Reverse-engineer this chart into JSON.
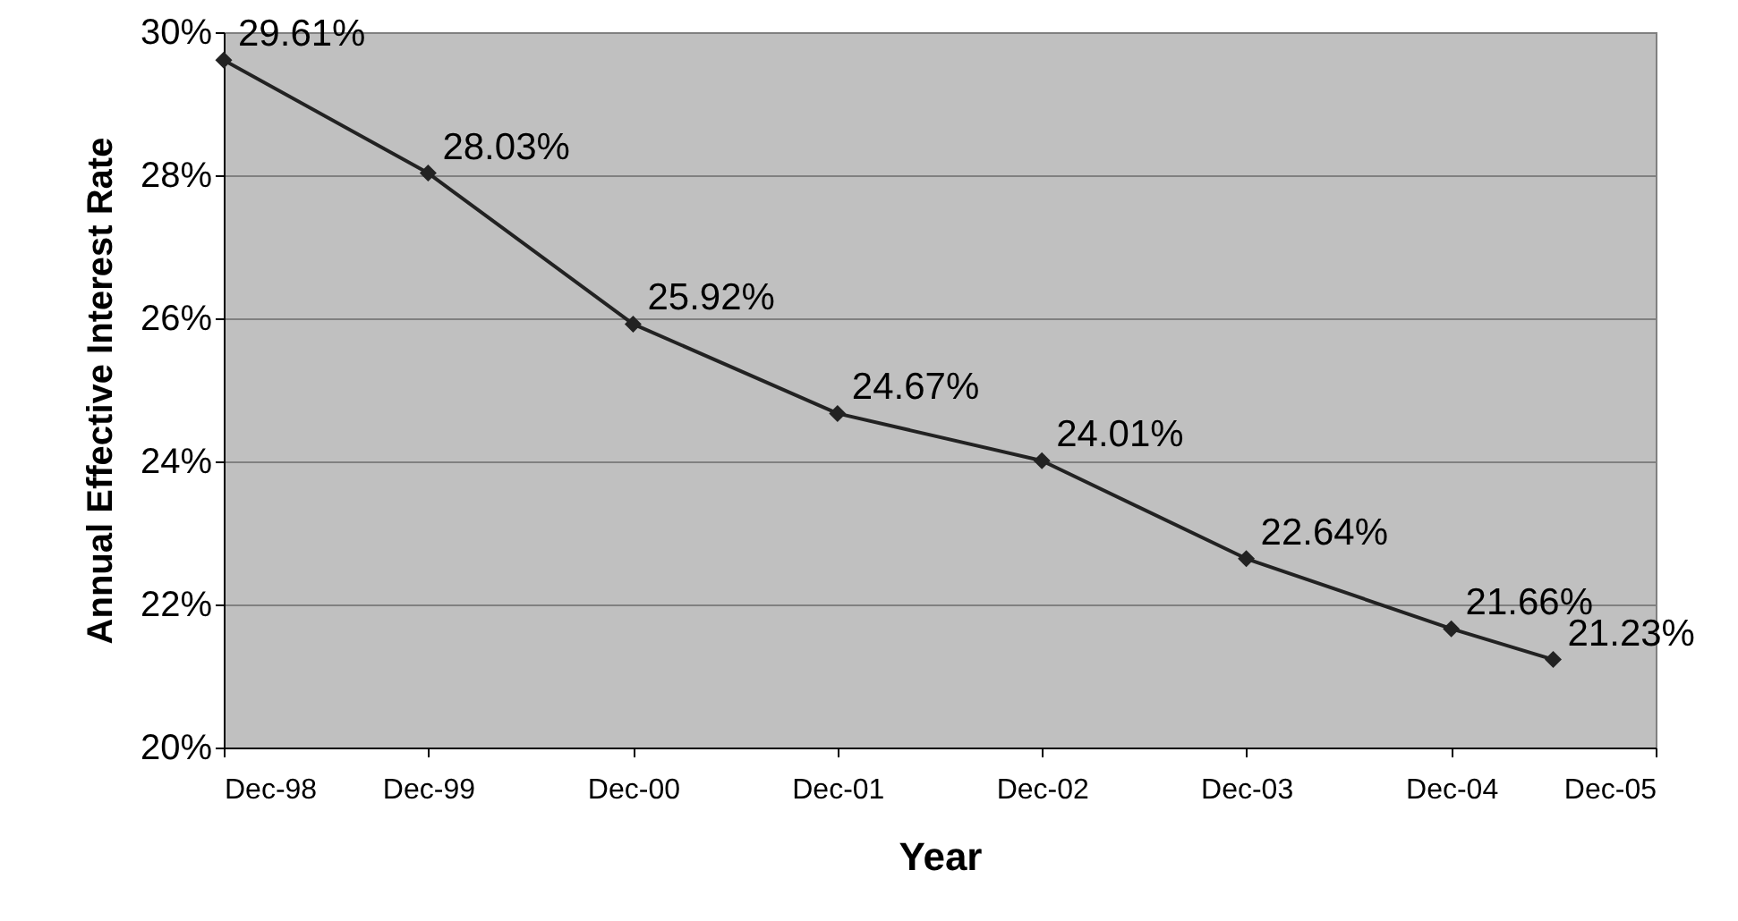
{
  "chart_data": {
    "type": "line",
    "xlabel": "Year",
    "ylabel": "Annual Effective Interest Rate",
    "x": [
      "1998-12",
      "1999-12",
      "2000-12",
      "2001-12",
      "2002-12",
      "2003-12",
      "2004-12",
      "2005-06"
    ],
    "series": [
      {
        "color": "#222222",
        "values": [
          29.61,
          28.03,
          25.92,
          24.67,
          24.01,
          22.64,
          21.66,
          21.23
        ],
        "value_labels": [
          "29.61%",
          "28.03%",
          "25.92%",
          "24.67%",
          "24.01%",
          "22.64%",
          "21.66%",
          "21.23%"
        ]
      }
    ],
    "xlim": [
      "1998-12",
      "2005-12"
    ],
    "xticks": [
      {
        "value": "1998-12",
        "label": "Dec-98"
      },
      {
        "value": "1999-12",
        "label": "Dec-99"
      },
      {
        "value": "2000-12",
        "label": "Dec-00"
      },
      {
        "value": "2001-12",
        "label": "Dec-01"
      },
      {
        "value": "2002-12",
        "label": "Dec-02"
      },
      {
        "value": "2003-12",
        "label": "Dec-03"
      },
      {
        "value": "2004-12",
        "label": "Dec-04"
      },
      {
        "value": "2005-12",
        "label": "Dec-05"
      }
    ],
    "ylim": [
      20,
      30
    ],
    "yticks": [
      {
        "value": 20,
        "label": "20%"
      },
      {
        "value": 22,
        "label": "22%"
      },
      {
        "value": 24,
        "label": "24%"
      },
      {
        "value": 26,
        "label": "26%"
      },
      {
        "value": 28,
        "label": "28%"
      },
      {
        "value": 30,
        "label": "30%"
      }
    ],
    "grid": "y",
    "marker": "diamond",
    "line_style": "solid"
  }
}
